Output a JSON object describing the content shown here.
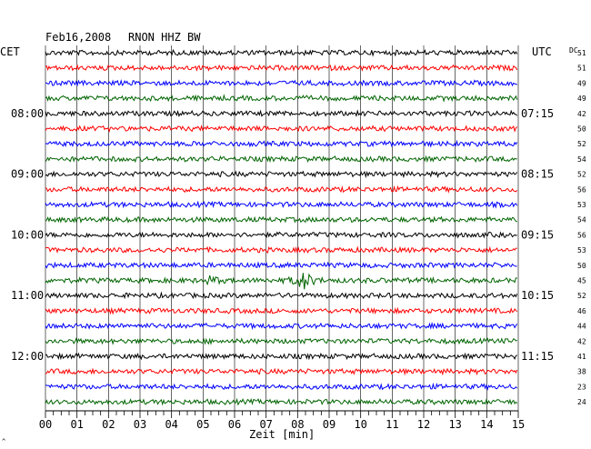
{
  "header": {
    "date": "Feb16,2008",
    "station": "RNON HHZ BW",
    "left_zone": "CET",
    "right_zone": "UTC",
    "dc_label": "DC"
  },
  "chart_data": {
    "type": "line",
    "title": "Feb16,2008   RNON HHZ BW",
    "xlabel": "Zeit [min]",
    "xlim": [
      0,
      15
    ],
    "x_ticks": [
      "00",
      "01",
      "02",
      "03",
      "04",
      "05",
      "06",
      "07",
      "08",
      "09",
      "10",
      "11",
      "12",
      "13",
      "14",
      "15"
    ],
    "trace_count": 24,
    "trace_colors": [
      "#000000",
      "#ff0000",
      "#0000ff",
      "#006400"
    ],
    "left_time_labels": [
      {
        "trace": 4,
        "label": "08:00"
      },
      {
        "trace": 8,
        "label": "09:00"
      },
      {
        "trace": 12,
        "label": "10:00"
      },
      {
        "trace": 16,
        "label": "11:00"
      },
      {
        "trace": 20,
        "label": "12:00"
      }
    ],
    "right_time_labels": [
      {
        "trace": 4,
        "label": "07:15"
      },
      {
        "trace": 8,
        "label": "08:15"
      },
      {
        "trace": 12,
        "label": "09:15"
      },
      {
        "trace": 16,
        "label": "10:15"
      },
      {
        "trace": 20,
        "label": "11:15"
      }
    ],
    "dc_offsets": [
      "51",
      "51",
      "49",
      "49",
      "42",
      "50",
      "52",
      "54",
      "52",
      "56",
      "53",
      "54",
      "56",
      "53",
      "50",
      "45",
      "52",
      "46",
      "44",
      "42",
      "41",
      "38",
      "23",
      "24"
    ],
    "events": [
      {
        "trace": 15,
        "minute": 5.3,
        "amplitude": "small"
      },
      {
        "trace": 15,
        "minute": 8.2,
        "amplitude": "large"
      }
    ]
  },
  "footer": {
    "corner_mark": "^"
  }
}
